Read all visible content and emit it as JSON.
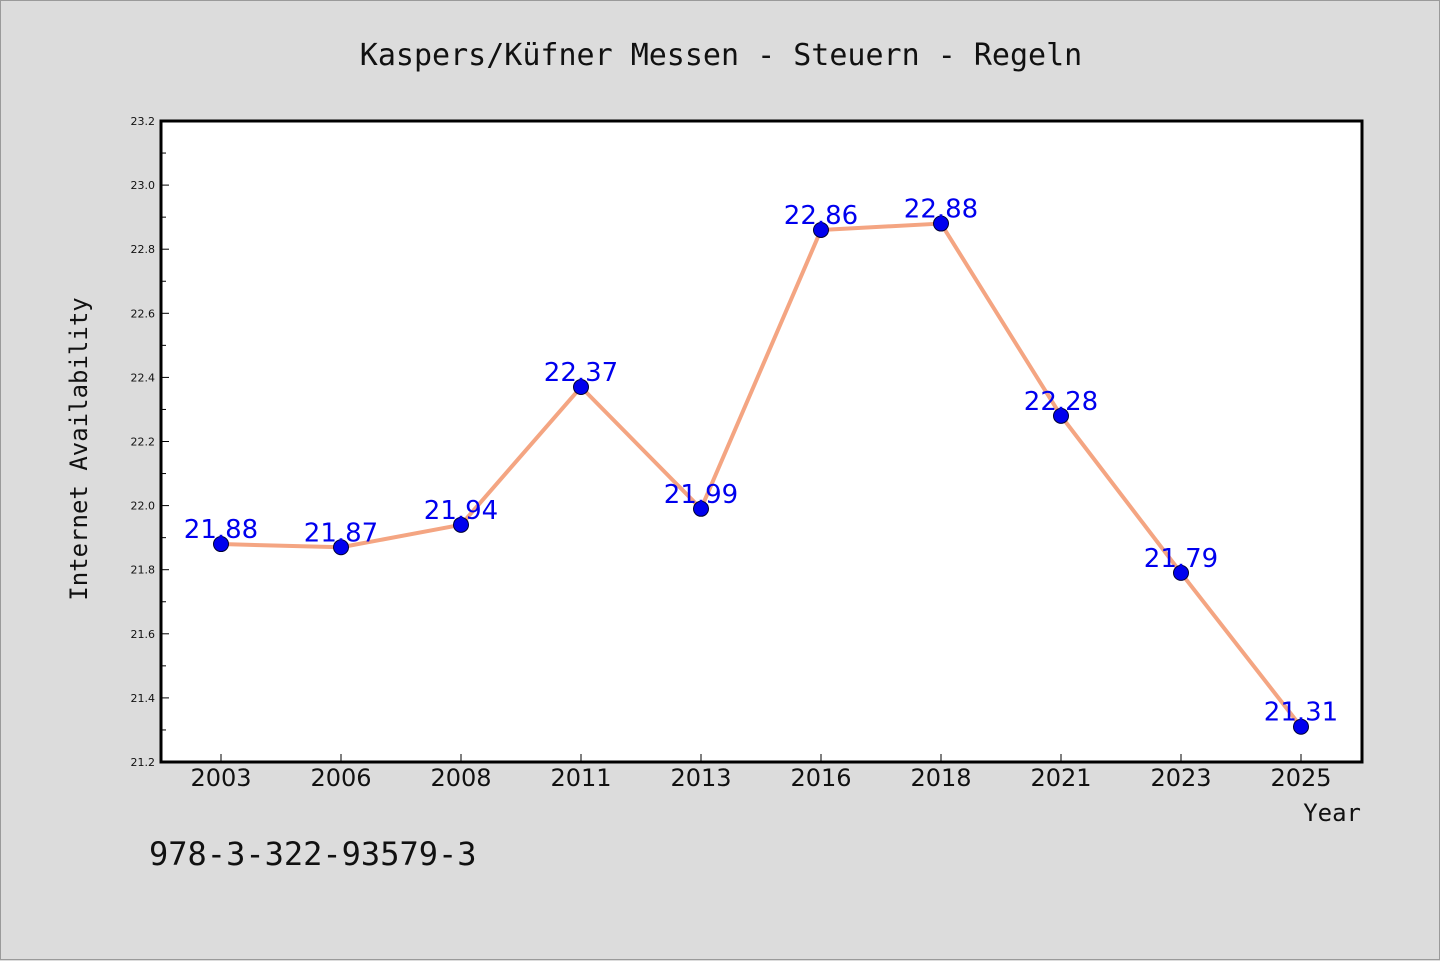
{
  "chart_data": {
    "type": "line",
    "title": "Kaspers/Küfner Messen - Steuern - Regeln",
    "xlabel": "Year",
    "ylabel": "Internet Availability",
    "categories": [
      "2003",
      "2006",
      "2008",
      "2011",
      "2013",
      "2016",
      "2018",
      "2021",
      "2023",
      "2025"
    ],
    "series": [
      {
        "values": [
          21.88,
          21.87,
          21.94,
          22.37,
          21.99,
          22.86,
          22.88,
          22.28,
          21.79,
          21.31
        ],
        "labels": [
          "21.88",
          "21.87",
          "21.94",
          "22.37",
          "21.99",
          "22.86",
          "22.88",
          "22.28",
          "21.79",
          "21.31"
        ]
      }
    ],
    "ylim": [
      21.2,
      23.2
    ],
    "yticks": [
      "21.2",
      "21.4",
      "21.6",
      "21.8",
      "22.0",
      "22.2",
      "22.4",
      "22.6",
      "22.8",
      "23.0",
      "23.2"
    ],
    "grid": false,
    "line_color": "#f4a582",
    "marker_color": "#0000ee",
    "label_color": "#0000ee",
    "plot_background": "#ffffff",
    "figure_background": "#dcdcdc"
  },
  "footer": {
    "isbn": "978-3-322-93579-3"
  }
}
